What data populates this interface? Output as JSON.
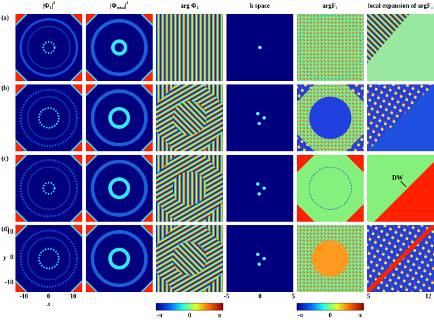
{
  "headers": [
    {
      "main": "|Φ",
      "sub": "1",
      "end": "|",
      "sup": "2"
    },
    {
      "main": "|Φ",
      "sub": "total",
      "end": "|",
      "sup": "2"
    },
    {
      "main": "arg Φ",
      "sub": "1",
      "end": "",
      "sup": ""
    },
    {
      "main": "k space",
      "sub": "",
      "end": "",
      "sup": ""
    },
    {
      "main": "argF",
      "sub": "+",
      "end": "",
      "sup": ""
    },
    {
      "main": "local expansion of argF",
      "sub": "+",
      "end": "",
      "sup": ""
    }
  ],
  "row_labels": [
    "(a)",
    "(b)",
    "(c)",
    "(d)"
  ],
  "y_axis": {
    "label": "y",
    "ticks": [
      "10",
      "0",
      "-10"
    ]
  },
  "x_axis": {
    "label": "x",
    "ticks": [
      "-10",
      "0",
      "10"
    ]
  },
  "k_axis": {
    "ticks": [
      "-5",
      "0",
      "5"
    ]
  },
  "zoom_axis": {
    "ticks": [
      "5",
      "12"
    ]
  },
  "colorbars": [
    {
      "ticks": [
        "-π",
        "0",
        "π"
      ]
    },
    {
      "ticks": [
        "-π",
        "0",
        "π"
      ]
    }
  ],
  "annotation": "DW"
}
